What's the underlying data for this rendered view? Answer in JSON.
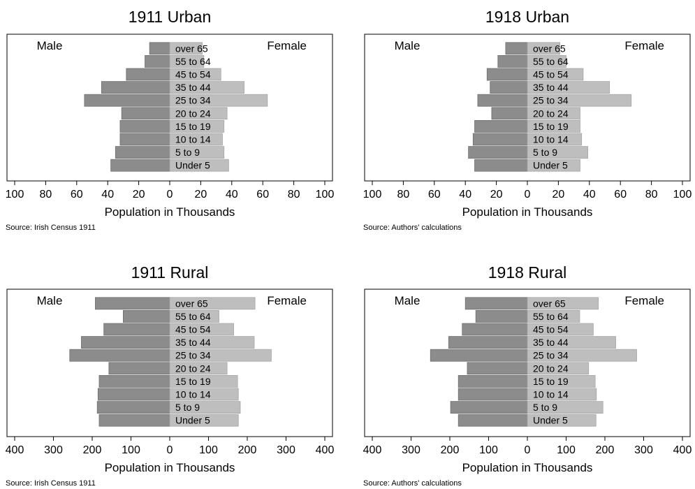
{
  "chart_data": [
    {
      "type": "bar",
      "orientation": "horizontal-population-pyramid",
      "title": "1911 Urban",
      "left_label": "Male",
      "right_label": "Female",
      "categories": [
        "Under 5",
        "5 to 9",
        "10 to 14",
        "15 to 19",
        "20 to 24",
        "25 to 34",
        "35 to 44",
        "45 to 54",
        "55 to 64",
        "over 65"
      ],
      "series": [
        {
          "name": "Male",
          "values": [
            38,
            35,
            32,
            32,
            31,
            55,
            44,
            28,
            16,
            13
          ]
        },
        {
          "name": "Female",
          "values": [
            38,
            35,
            34,
            35,
            37,
            63,
            48,
            33,
            22,
            21
          ]
        }
      ],
      "xlim": [
        -100,
        100
      ],
      "xticks": [
        100,
        80,
        60,
        40,
        20,
        0,
        20,
        40,
        60,
        80,
        100
      ],
      "xlabel": "Population in Thousands",
      "note": "Source: Irish Census 1911",
      "colors": {
        "male": "#8c8c8c",
        "female": "#bebebe"
      }
    },
    {
      "type": "bar",
      "orientation": "horizontal-population-pyramid",
      "title": "1918 Urban",
      "left_label": "Male",
      "right_label": "Female",
      "categories": [
        "Under 5",
        "5 to 9",
        "10 to 14",
        "15 to 19",
        "20 to 24",
        "25 to 34",
        "35 to 44",
        "45 to 54",
        "55 to 64",
        "over 65"
      ],
      "series": [
        {
          "name": "Male",
          "values": [
            34,
            38,
            35,
            34,
            23,
            32,
            24,
            26,
            19,
            14
          ]
        },
        {
          "name": "Female",
          "values": [
            34,
            39,
            35,
            34,
            34,
            67,
            53,
            36,
            25,
            21
          ]
        }
      ],
      "xlim": [
        -100,
        100
      ],
      "xticks": [
        100,
        80,
        60,
        40,
        20,
        0,
        20,
        40,
        60,
        80,
        100
      ],
      "xlabel": "Population in Thousands",
      "note": "Source: Authors' calculations",
      "colors": {
        "male": "#8c8c8c",
        "female": "#bebebe"
      }
    },
    {
      "type": "bar",
      "orientation": "horizontal-population-pyramid",
      "title": "1911 Rural",
      "left_label": "Male",
      "right_label": "Female",
      "categories": [
        "Under 5",
        "5 to 9",
        "10 to 14",
        "15 to 19",
        "20 to 24",
        "25 to 34",
        "35 to 44",
        "45 to 54",
        "55 to 64",
        "over 65"
      ],
      "series": [
        {
          "name": "Male",
          "values": [
            182,
            187,
            185,
            182,
            157,
            258,
            228,
            170,
            120,
            192
          ]
        },
        {
          "name": "Female",
          "values": [
            177,
            182,
            177,
            175,
            148,
            262,
            218,
            165,
            127,
            220
          ]
        }
      ],
      "xlim": [
        -400,
        400
      ],
      "xticks": [
        400,
        300,
        200,
        100,
        0,
        100,
        200,
        300,
        400
      ],
      "xlabel": "Population in Thousands",
      "note": "Source: Irish Census 1911",
      "colors": {
        "male": "#8c8c8c",
        "female": "#bebebe"
      }
    },
    {
      "type": "bar",
      "orientation": "horizontal-population-pyramid",
      "title": "1918 Rural",
      "left_label": "Male",
      "right_label": "Female",
      "categories": [
        "Under 5",
        "5 to 9",
        "10 to 14",
        "15 to 19",
        "20 to 24",
        "25 to 34",
        "35 to 44",
        "45 to 54",
        "55 to 64",
        "over 65"
      ],
      "series": [
        {
          "name": "Male",
          "values": [
            178,
            198,
            178,
            178,
            155,
            250,
            203,
            168,
            133,
            160
          ]
        },
        {
          "name": "Female",
          "values": [
            177,
            195,
            178,
            175,
            158,
            282,
            228,
            170,
            135,
            183
          ]
        }
      ],
      "xlim": [
        -400,
        400
      ],
      "xticks": [
        400,
        300,
        200,
        100,
        0,
        100,
        200,
        300,
        400
      ],
      "xlabel": "Population in Thousands",
      "note": "Source: Authors' calculations",
      "colors": {
        "male": "#8c8c8c",
        "female": "#bebebe"
      }
    }
  ]
}
